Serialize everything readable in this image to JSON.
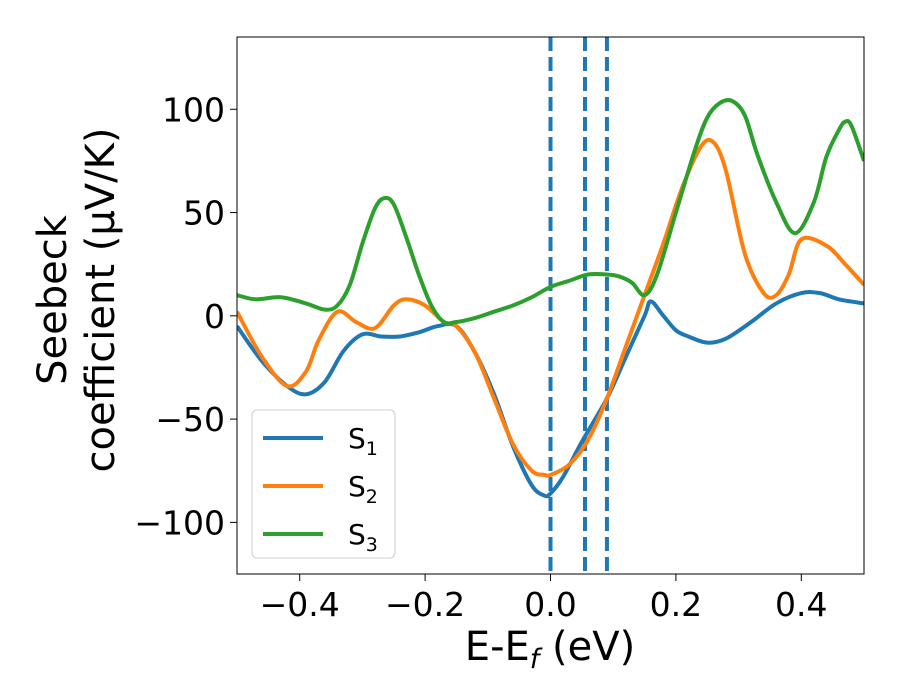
{
  "chart_data": {
    "type": "line",
    "title": "",
    "xlabel": "E-E",
    "xlabel_sub": "f",
    "xlabel_unit": " (eV)",
    "ylabel_line1": "Seebeck",
    "ylabel_line2": "coefficient  (μV/K)",
    "xlim": [
      -0.5,
      0.5
    ],
    "ylim": [
      -125,
      135
    ],
    "xticks": [
      -0.4,
      -0.2,
      0.0,
      0.2,
      0.4
    ],
    "xtick_labels": [
      "−0.4",
      "−0.2",
      "0.0",
      "0.2",
      "0.4"
    ],
    "yticks": [
      -100,
      -50,
      0,
      50,
      100
    ],
    "ytick_labels": [
      "−100",
      "−50",
      "0",
      "50",
      "100"
    ],
    "grid": false,
    "legend_position": "lower-left",
    "vertical_lines": [
      {
        "x": 0.0,
        "style": "dashed",
        "color": "#000000"
      },
      {
        "x": 0.0,
        "style": "dashed",
        "color": "#1f77b4"
      },
      {
        "x": 0.055,
        "style": "dashed",
        "color": "#1f77b4"
      },
      {
        "x": 0.09,
        "style": "dashed",
        "color": "#1f77b4"
      }
    ],
    "series": [
      {
        "name": "S",
        "sub": "1",
        "color": "#1f77b4",
        "x": [
          -0.5,
          -0.46,
          -0.42,
          -0.39,
          -0.36,
          -0.33,
          -0.3,
          -0.27,
          -0.24,
          -0.21,
          -0.18,
          -0.15,
          -0.12,
          -0.09,
          -0.06,
          -0.03,
          -0.01,
          0.0,
          0.02,
          0.05,
          0.09,
          0.12,
          0.15,
          0.16,
          0.18,
          0.2,
          0.22,
          0.25,
          0.28,
          0.32,
          0.36,
          0.4,
          0.43,
          0.46,
          0.5
        ],
        "y": [
          -5,
          -22,
          -34,
          -38,
          -32,
          -17,
          -9,
          -10,
          -10,
          -8,
          -5,
          -5,
          -18,
          -38,
          -63,
          -82,
          -87,
          -86,
          -78,
          -61,
          -40,
          -20,
          0,
          7,
          0,
          -7,
          -10,
          -13,
          -11,
          -3,
          6,
          11,
          11,
          8,
          6
        ]
      },
      {
        "name": "S",
        "sub": "2",
        "color": "#ff7f0e",
        "x": [
          -0.5,
          -0.46,
          -0.42,
          -0.39,
          -0.37,
          -0.34,
          -0.31,
          -0.28,
          -0.25,
          -0.23,
          -0.2,
          -0.17,
          -0.15,
          -0.12,
          -0.09,
          -0.06,
          -0.03,
          -0.01,
          0.0,
          0.03,
          0.06,
          0.09,
          0.12,
          0.15,
          0.18,
          0.21,
          0.24,
          0.26,
          0.28,
          0.31,
          0.34,
          0.36,
          0.38,
          0.4,
          0.44,
          0.47,
          0.5
        ],
        "y": [
          2,
          -20,
          -34,
          -27,
          -12,
          2,
          -3,
          -6,
          5,
          8,
          5,
          -3,
          -5,
          -18,
          -40,
          -62,
          -75,
          -77,
          -77,
          -72,
          -60,
          -40,
          -15,
          10,
          35,
          62,
          82,
          84,
          70,
          30,
          11,
          10,
          20,
          37,
          34,
          25,
          15
        ]
      },
      {
        "name": "S",
        "sub": "3",
        "color": "#2ca02c",
        "x": [
          -0.5,
          -0.47,
          -0.43,
          -0.39,
          -0.36,
          -0.34,
          -0.32,
          -0.3,
          -0.28,
          -0.265,
          -0.25,
          -0.23,
          -0.21,
          -0.19,
          -0.17,
          -0.15,
          -0.12,
          -0.09,
          -0.06,
          -0.03,
          0.0,
          0.03,
          0.06,
          0.09,
          0.11,
          0.13,
          0.15,
          0.17,
          0.2,
          0.23,
          0.25,
          0.27,
          0.29,
          0.31,
          0.33,
          0.36,
          0.39,
          0.42,
          0.44,
          0.46,
          0.47,
          0.48,
          0.5
        ],
        "y": [
          10,
          8,
          9,
          6,
          3,
          5,
          15,
          35,
          52,
          57,
          54,
          38,
          20,
          5,
          -3,
          -3,
          -1,
          2,
          5,
          9,
          14,
          17,
          20,
          20,
          19,
          16,
          10,
          20,
          50,
          80,
          96,
          103,
          104,
          97,
          78,
          55,
          40,
          55,
          77,
          90,
          94,
          92,
          75
        ]
      }
    ]
  }
}
